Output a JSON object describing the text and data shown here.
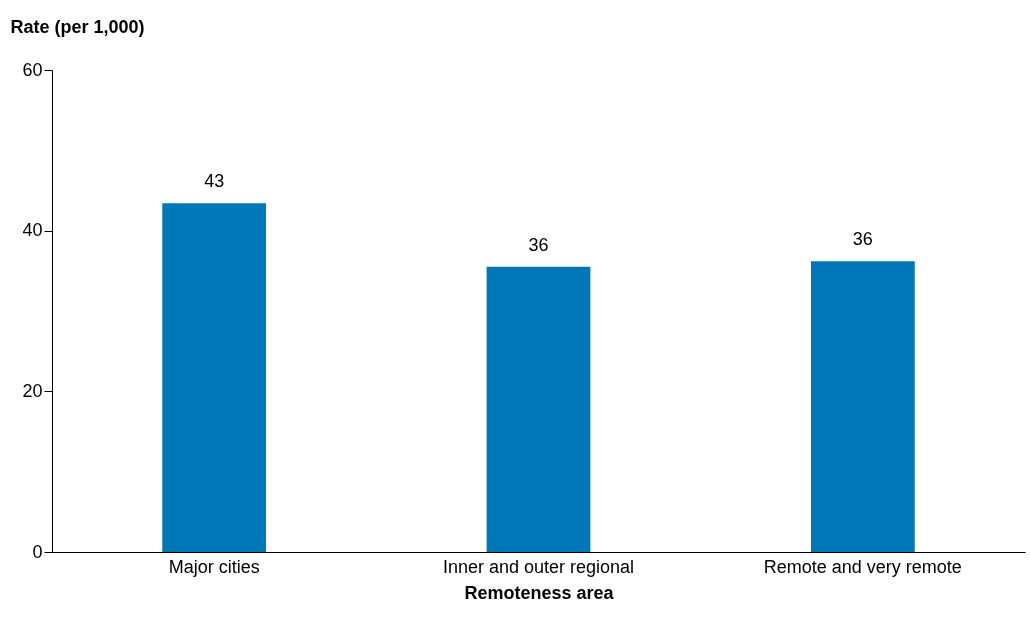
{
  "chart_data": {
    "type": "bar",
    "xlabel": "Remoteness area",
    "ylabel": "Rate (per 1,000)",
    "categories": [
      "Major cities",
      "Inner and outer regional",
      "Remote and very remote"
    ],
    "values": [
      43.4,
      35.5,
      36.2
    ],
    "value_labels": [
      "43",
      "36",
      "36"
    ],
    "color": "#0078b8",
    "ylim": [
      0,
      60
    ],
    "yticks": [
      0,
      20,
      40,
      60
    ]
  }
}
